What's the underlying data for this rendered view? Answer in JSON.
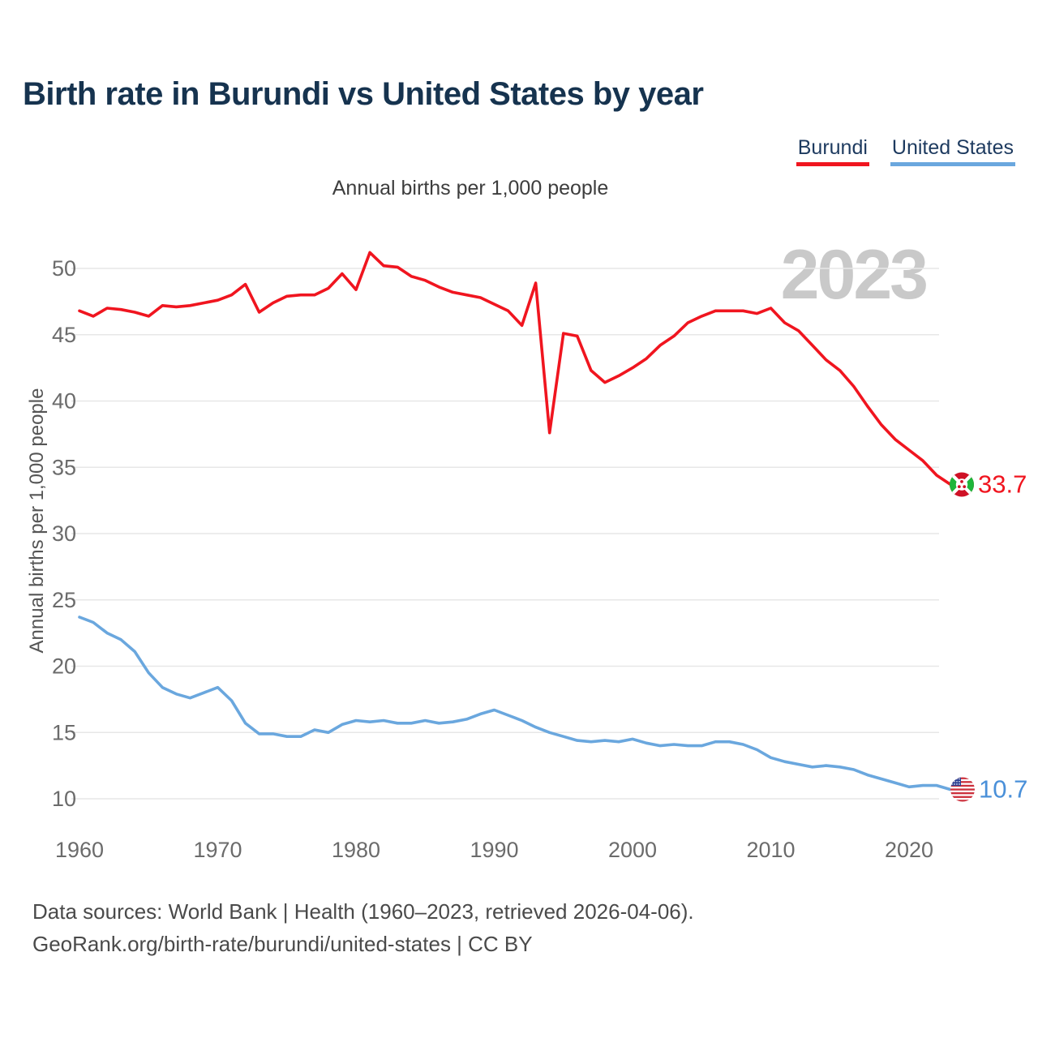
{
  "title": "Birth rate in Burundi vs United States by year",
  "subtitle": "Annual births per 1,000 people",
  "y_axis_title": "Annual births per 1,000 people",
  "watermark": "2023",
  "legend": [
    {
      "label": "Burundi",
      "color": "#f0151f"
    },
    {
      "label": "United States",
      "color": "#6aa7de"
    }
  ],
  "end_labels": [
    {
      "series": "Burundi",
      "value": "33.7",
      "color": "#f0151f"
    },
    {
      "series": "United States",
      "value": "10.7",
      "color": "#4a90d9"
    }
  ],
  "footer": {
    "line1": "Data sources: World Bank | Health (1960–2023, retrieved 2026-04-06).",
    "line2": "GeoRank.org/birth-rate/burundi/united-states | CC BY"
  },
  "colors": {
    "grid": "#e7e7e7",
    "tick": "#6b6b6b",
    "watermark": "#c9c9c9"
  },
  "icons": {
    "burundi_flag": {
      "red": "#cf1126",
      "green": "#1eb53a",
      "white": "#ffffff"
    },
    "us_flag": {
      "red": "#cc2f3b",
      "blue": "#2b3f92",
      "white": "#ffffff"
    }
  },
  "chart_data": {
    "type": "line",
    "title": "Birth rate in Burundi vs United States by year",
    "xlabel": "",
    "ylabel": "Annual births per 1,000 people",
    "ylim": [
      8.5,
      52.5
    ],
    "xlim": [
      1960,
      2023
    ],
    "y_ticks": [
      10,
      15,
      20,
      25,
      30,
      35,
      40,
      45,
      50
    ],
    "x_ticks": [
      1960,
      1970,
      1980,
      1990,
      2000,
      2010,
      2020
    ],
    "grid": true,
    "legend_position": "top-right",
    "x": [
      1960,
      1961,
      1962,
      1963,
      1964,
      1965,
      1966,
      1967,
      1968,
      1969,
      1970,
      1971,
      1972,
      1973,
      1974,
      1975,
      1976,
      1977,
      1978,
      1979,
      1980,
      1981,
      1982,
      1983,
      1984,
      1985,
      1986,
      1987,
      1988,
      1989,
      1990,
      1991,
      1992,
      1993,
      1994,
      1995,
      1996,
      1997,
      1998,
      1999,
      2000,
      2001,
      2002,
      2003,
      2004,
      2005,
      2006,
      2007,
      2008,
      2009,
      2010,
      2011,
      2012,
      2013,
      2014,
      2015,
      2016,
      2017,
      2018,
      2019,
      2020,
      2021,
      2022,
      2023
    ],
    "series": [
      {
        "name": "Burundi",
        "color": "#f0151f",
        "values": [
          46.8,
          46.4,
          47.0,
          46.9,
          46.7,
          46.4,
          47.2,
          47.1,
          47.2,
          47.4,
          47.6,
          48.0,
          48.8,
          46.7,
          47.4,
          47.9,
          48.0,
          48.0,
          48.5,
          49.6,
          48.4,
          51.2,
          50.2,
          50.1,
          49.4,
          49.1,
          48.6,
          48.2,
          48.0,
          47.8,
          47.3,
          46.8,
          45.7,
          48.9,
          37.6,
          45.1,
          44.9,
          42.3,
          41.4,
          41.9,
          42.5,
          43.2,
          44.2,
          44.9,
          45.9,
          46.4,
          46.8,
          46.8,
          46.8,
          46.6,
          47.0,
          45.9,
          45.3,
          44.2,
          43.1,
          42.3,
          41.1,
          39.6,
          38.2,
          37.1,
          36.3,
          35.5,
          34.4,
          33.7
        ]
      },
      {
        "name": "United States",
        "color": "#6aa7de",
        "values": [
          23.7,
          23.3,
          22.5,
          22.0,
          21.1,
          19.5,
          18.4,
          17.9,
          17.6,
          18.0,
          18.4,
          17.4,
          15.7,
          14.9,
          14.9,
          14.7,
          14.7,
          15.2,
          15.0,
          15.6,
          15.9,
          15.8,
          15.9,
          15.7,
          15.7,
          15.9,
          15.7,
          15.8,
          16.0,
          16.4,
          16.7,
          16.3,
          15.9,
          15.4,
          15.0,
          14.7,
          14.4,
          14.3,
          14.4,
          14.3,
          14.5,
          14.2,
          14.0,
          14.1,
          14.0,
          14.0,
          14.3,
          14.3,
          14.1,
          13.7,
          13.1,
          12.8,
          12.6,
          12.4,
          12.5,
          12.4,
          12.2,
          11.8,
          11.5,
          11.2,
          10.9,
          11.0,
          11.0,
          10.7
        ]
      }
    ]
  }
}
